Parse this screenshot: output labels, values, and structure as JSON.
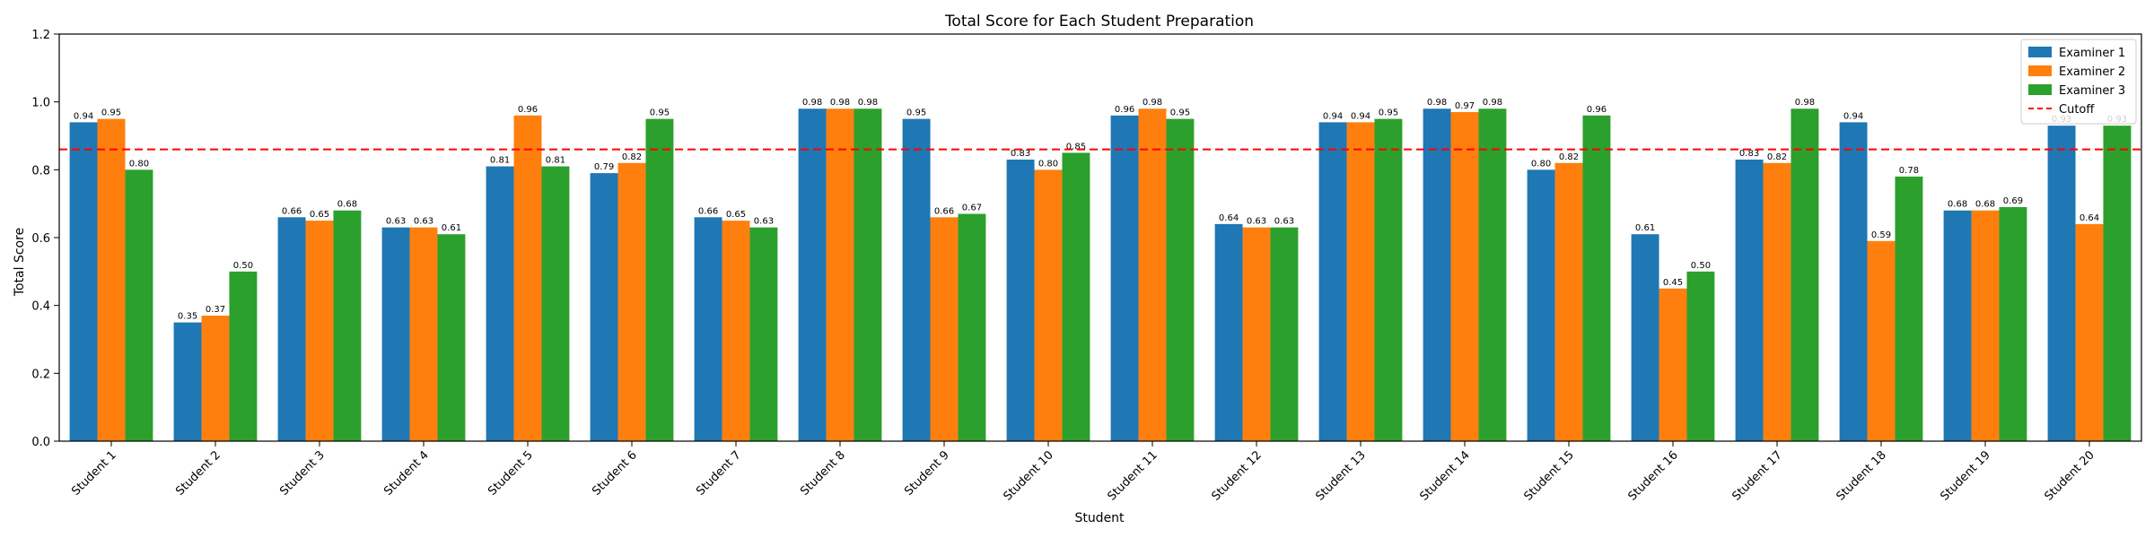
{
  "chart_data": {
    "type": "bar",
    "title": "Total Score for Each Student Preparation",
    "xlabel": "Student",
    "ylabel": "Total Score",
    "ylim": [
      0,
      1.2
    ],
    "yticks": [
      "0.0",
      "0.2",
      "0.4",
      "0.6",
      "0.8",
      "1.0",
      "1.2"
    ],
    "legend_position": "top-right",
    "categories": [
      "Student 1",
      "Student 2",
      "Student 3",
      "Student 4",
      "Student 5",
      "Student 6",
      "Student 7",
      "Student 8",
      "Student 9",
      "Student 10",
      "Student 11",
      "Student 12",
      "Student 13",
      "Student 14",
      "Student 15",
      "Student 16",
      "Student 17",
      "Student 18",
      "Student 19",
      "Student 20"
    ],
    "series": [
      {
        "name": "Examiner 1",
        "color": "#1f77b4",
        "values": [
          0.94,
          0.35,
          0.66,
          0.63,
          0.81,
          0.79,
          0.66,
          0.98,
          0.95,
          0.83,
          0.96,
          0.64,
          0.94,
          0.98,
          0.8,
          0.61,
          0.83,
          0.94,
          0.68,
          0.93
        ]
      },
      {
        "name": "Examiner 2",
        "color": "#ff7f0e",
        "values": [
          0.95,
          0.37,
          0.65,
          0.63,
          0.96,
          0.82,
          0.65,
          0.98,
          0.66,
          0.8,
          0.98,
          0.63,
          0.94,
          0.97,
          0.82,
          0.45,
          0.82,
          0.59,
          0.68,
          0.64
        ]
      },
      {
        "name": "Examiner 3",
        "color": "#2ca02c",
        "values": [
          0.8,
          0.5,
          0.68,
          0.61,
          0.81,
          0.95,
          0.63,
          0.98,
          0.67,
          0.85,
          0.95,
          0.63,
          0.95,
          0.98,
          0.96,
          0.5,
          0.98,
          0.78,
          0.69,
          0.93
        ]
      }
    ],
    "cutoff": {
      "name": "Cutoff",
      "value": 0.86,
      "color": "#ff0000",
      "style": "dashed"
    },
    "grid": false
  }
}
